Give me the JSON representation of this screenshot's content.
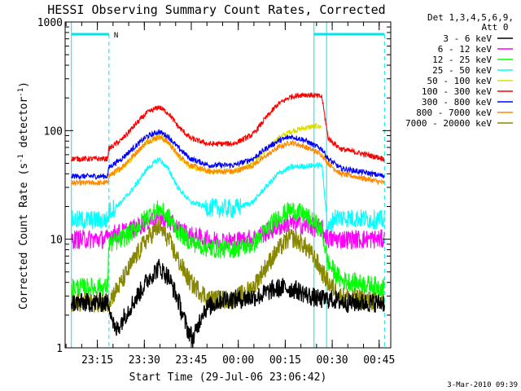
{
  "chart_data": {
    "type": "line",
    "title": "HESSI Observing Summary Count Rates, Corrected",
    "xlabel": "Start Time (29-Jul-06 23:06:42)",
    "ylabel_main": "Corrected Count Rate (s",
    "ylabel_sup1": "-1",
    "ylabel_mid": " detector",
    "ylabel_sup2": "-1",
    "ylabel_end": ")",
    "yscale": "log",
    "ylim": [
      1,
      1000
    ],
    "xlim_min": [
      -2,
      58
    ],
    "x_ticks": [
      {
        "t": 8.3,
        "label": "23:15"
      },
      {
        "t": 23.3,
        "label": "23:30"
      },
      {
        "t": 38.3,
        "label": "23:45"
      },
      {
        "t": 53.3,
        "label": "00:00"
      },
      {
        "t": 68.3,
        "label": "00:15"
      },
      {
        "t": 83.3,
        "label": "00:30"
      },
      {
        "t": 98.3,
        "label": "00:45"
      }
    ],
    "y_ticks": [
      {
        "v": 1,
        "label": "1"
      },
      {
        "v": 10,
        "label": "10"
      },
      {
        "v": 100,
        "label": "100"
      },
      {
        "v": 1000,
        "label": "1000"
      }
    ],
    "x_range_min": [
      0,
      100
    ],
    "legend_header": [
      "Det 1,3,4,5,6,9,",
      "Att 0"
    ],
    "timestamp": "3-Mar-2010 09:39",
    "night_marker": "N",
    "series": [
      {
        "name": "3 - 6 keV",
        "color": "#000000",
        "points": [
          [
            0,
            2.6
          ],
          [
            12,
            2.6
          ],
          [
            14,
            1.4
          ],
          [
            18,
            2.2
          ],
          [
            22,
            3.3
          ],
          [
            25,
            4.5
          ],
          [
            28,
            5.5
          ],
          [
            31,
            4.5
          ],
          [
            34,
            2.8
          ],
          [
            37,
            1.5
          ],
          [
            39,
            1.2
          ],
          [
            42,
            2.2
          ],
          [
            48,
            2.8
          ],
          [
            54,
            2.8
          ],
          [
            60,
            3.0
          ],
          [
            64,
            3.4
          ],
          [
            68,
            3.6
          ],
          [
            72,
            3.4
          ],
          [
            76,
            3.0
          ],
          [
            79,
            2.8
          ],
          [
            83,
            2.8
          ],
          [
            88,
            2.6
          ],
          [
            100,
            2.6
          ]
        ]
      },
      {
        "name": "6 - 12 keV",
        "color": "#ff00ff",
        "points": [
          [
            0,
            10
          ],
          [
            11.5,
            10
          ],
          [
            12,
            11
          ],
          [
            16,
            11.5
          ],
          [
            20,
            12.5
          ],
          [
            24,
            14.5
          ],
          [
            28,
            16
          ],
          [
            31,
            14.5
          ],
          [
            34,
            12.5
          ],
          [
            38,
            10.8
          ],
          [
            44,
            9.8
          ],
          [
            52,
            9.6
          ],
          [
            58,
            10.2
          ],
          [
            62,
            11.5
          ],
          [
            66,
            13
          ],
          [
            70,
            14
          ],
          [
            74,
            13.5
          ],
          [
            78,
            12.8
          ],
          [
            80,
            12.5
          ],
          [
            82,
            10
          ],
          [
            100,
            10
          ]
        ]
      },
      {
        "name": "12 - 25 keV",
        "color": "#00ff00",
        "points": [
          [
            0,
            3.6
          ],
          [
            11.5,
            3.6
          ],
          [
            12,
            9
          ],
          [
            16,
            10
          ],
          [
            20,
            12
          ],
          [
            24,
            16
          ],
          [
            28,
            19
          ],
          [
            31,
            16
          ],
          [
            34,
            12
          ],
          [
            38,
            9.5
          ],
          [
            44,
            8.2
          ],
          [
            52,
            8.2
          ],
          [
            58,
            9
          ],
          [
            62,
            12
          ],
          [
            66,
            16
          ],
          [
            70,
            18.5
          ],
          [
            74,
            17
          ],
          [
            78,
            14
          ],
          [
            80,
            12
          ],
          [
            82,
            6
          ],
          [
            86,
            4.2
          ],
          [
            100,
            3.6
          ]
        ]
      },
      {
        "name": "25 - 50 keV",
        "color": "#00ffff",
        "points": [
          [
            0,
            15
          ],
          [
            11.5,
            15
          ],
          [
            12,
            18
          ],
          [
            16,
            22
          ],
          [
            20,
            30
          ],
          [
            24,
            44
          ],
          [
            28,
            55
          ],
          [
            31,
            44
          ],
          [
            34,
            30
          ],
          [
            38,
            22
          ],
          [
            44,
            19.5
          ],
          [
            52,
            19
          ],
          [
            58,
            22
          ],
          [
            62,
            30
          ],
          [
            66,
            40
          ],
          [
            70,
            46
          ],
          [
            74,
            47
          ],
          [
            78,
            48
          ],
          [
            80,
            48
          ],
          [
            82,
            12
          ],
          [
            84,
            16
          ],
          [
            100,
            15
          ]
        ]
      },
      {
        "name": "50 - 100 keV",
        "color": "#dddd00",
        "points": [
          [
            11.5,
            38
          ],
          [
            16,
            44
          ],
          [
            20,
            58
          ],
          [
            24,
            78
          ],
          [
            28,
            90
          ],
          [
            31,
            78
          ],
          [
            34,
            58
          ],
          [
            38,
            46
          ],
          [
            44,
            42
          ],
          [
            52,
            42
          ],
          [
            58,
            50
          ],
          [
            62,
            65
          ],
          [
            66,
            85
          ],
          [
            70,
            98
          ],
          [
            74,
            105
          ],
          [
            78,
            110
          ],
          [
            80,
            108
          ]
        ]
      },
      {
        "name": "100 - 300 keV",
        "color": "#ff0000",
        "points": [
          [
            0,
            55
          ],
          [
            11.5,
            55
          ],
          [
            12,
            68
          ],
          [
            16,
            82
          ],
          [
            20,
            110
          ],
          [
            24,
            145
          ],
          [
            28,
            165
          ],
          [
            31,
            145
          ],
          [
            34,
            110
          ],
          [
            38,
            85
          ],
          [
            44,
            75
          ],
          [
            52,
            76
          ],
          [
            58,
            92
          ],
          [
            62,
            130
          ],
          [
            66,
            175
          ],
          [
            70,
            205
          ],
          [
            74,
            215
          ],
          [
            78,
            210
          ],
          [
            80,
            205
          ],
          [
            82,
            85
          ],
          [
            86,
            68
          ],
          [
            92,
            62
          ],
          [
            100,
            55
          ]
        ]
      },
      {
        "name": "300 - 800 keV",
        "color": "#0000ff",
        "points": [
          [
            0,
            38
          ],
          [
            11.5,
            38
          ],
          [
            12,
            46
          ],
          [
            16,
            55
          ],
          [
            20,
            70
          ],
          [
            24,
            88
          ],
          [
            28,
            98
          ],
          [
            31,
            88
          ],
          [
            34,
            70
          ],
          [
            38,
            55
          ],
          [
            44,
            48
          ],
          [
            52,
            48
          ],
          [
            58,
            55
          ],
          [
            62,
            68
          ],
          [
            66,
            80
          ],
          [
            70,
            88
          ],
          [
            74,
            83
          ],
          [
            78,
            72
          ],
          [
            80,
            68
          ],
          [
            82,
            55
          ],
          [
            86,
            45
          ],
          [
            92,
            42
          ],
          [
            100,
            38
          ]
        ]
      },
      {
        "name": "800 - 7000 keV",
        "color": "#ff8800",
        "points": [
          [
            0,
            33
          ],
          [
            11.5,
            33
          ],
          [
            12,
            38
          ],
          [
            16,
            46
          ],
          [
            20,
            60
          ],
          [
            24,
            78
          ],
          [
            28,
            88
          ],
          [
            31,
            78
          ],
          [
            34,
            60
          ],
          [
            38,
            48
          ],
          [
            44,
            42
          ],
          [
            52,
            42
          ],
          [
            58,
            48
          ],
          [
            62,
            58
          ],
          [
            66,
            70
          ],
          [
            70,
            78
          ],
          [
            74,
            72
          ],
          [
            78,
            64
          ],
          [
            80,
            60
          ],
          [
            82,
            50
          ],
          [
            86,
            40
          ],
          [
            92,
            37
          ],
          [
            100,
            33
          ]
        ]
      },
      {
        "name": "7000 - 20000 keV",
        "color": "#888800",
        "points": [
          [
            0,
            2.6
          ],
          [
            11.5,
            2.6
          ],
          [
            12,
            2.7
          ],
          [
            16,
            4
          ],
          [
            20,
            6.5
          ],
          [
            24,
            10
          ],
          [
            28,
            13
          ],
          [
            31,
            10
          ],
          [
            34,
            6.5
          ],
          [
            38,
            4
          ],
          [
            44,
            2.8
          ],
          [
            52,
            2.8
          ],
          [
            58,
            3.6
          ],
          [
            62,
            5.5
          ],
          [
            66,
            8
          ],
          [
            70,
            10.5
          ],
          [
            74,
            9
          ],
          [
            78,
            6.5
          ],
          [
            80,
            5
          ],
          [
            82,
            4
          ],
          [
            86,
            3
          ],
          [
            100,
            2.6
          ]
        ]
      }
    ]
  }
}
